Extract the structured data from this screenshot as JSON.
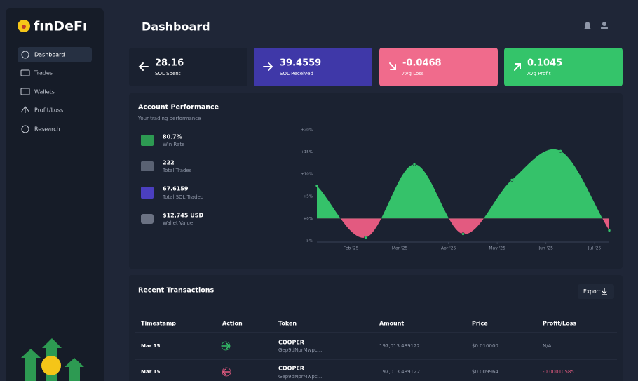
{
  "sidebar": {
    "logo": "fınDeFı",
    "nav": [
      "Dashboard",
      "Trades",
      "Wallets",
      "Profit/Loss",
      "Research"
    ]
  },
  "header": {
    "title": "Dashboard"
  },
  "cards": [
    {
      "value": 28.16,
      "label": "SOL Spent"
    },
    {
      "value": 39.4559,
      "label": "SOL Received"
    },
    {
      "value": -0.0468,
      "label": "Avg Loss"
    },
    {
      "value": 0.1045,
      "label": "Avg Profit"
    }
  ],
  "performance": {
    "title": "Account Performance",
    "subtitle": "Your trading performance",
    "stats": [
      {
        "value": "80.7%",
        "label": "Win Rate"
      },
      {
        "value": 222,
        "label": "Total Trades"
      },
      {
        "value": 67.6159,
        "label": "Total SOL Traded"
      },
      {
        "value": "$12,745 USD",
        "label": "Wallet Value"
      }
    ]
  },
  "chart_data": {
    "type": "area",
    "values": [
      7.4,
      -4.3,
      12.2,
      -3.5,
      8.7,
      15.2,
      -2.7
    ],
    "color": "#35c26a",
    "negative_color": "#e35a80",
    "xticks": [
      "Feb '25",
      "Mar '25",
      "Apr '25",
      "May '25",
      "Jun '25",
      "Jul '25"
    ],
    "ylim": [
      -5,
      20
    ],
    "yticks": [
      {
        "value": 20,
        "label": "+20%"
      },
      {
        "value": 15,
        "label": "+15%"
      },
      {
        "value": 10,
        "label": "+10%"
      },
      {
        "value": 5,
        "label": "+5%"
      },
      {
        "value": 0,
        "label": "+0%"
      },
      {
        "value": -5,
        "label": "-5%"
      }
    ]
  },
  "transactions": {
    "title": "Recent Transactions",
    "export": "Export",
    "columns": [
      "Timestamp",
      "Action",
      "Token",
      "Amount",
      "Price",
      "Profit/Loss"
    ],
    "rows": [
      {
        "timestamp": "Mar 15",
        "token": "COOPER",
        "address": "Gep9dNprMwpc...",
        "amount": "197,013.489122",
        "price": "$0.010000",
        "pnl": "N/A"
      },
      {
        "timestamp": "Mar 15",
        "token": "COOPER",
        "address": "Gep9dNprMwpc...",
        "amount": "197,013.489122",
        "price": "$0.009964",
        "pnl": "-0.00010585"
      }
    ]
  }
}
